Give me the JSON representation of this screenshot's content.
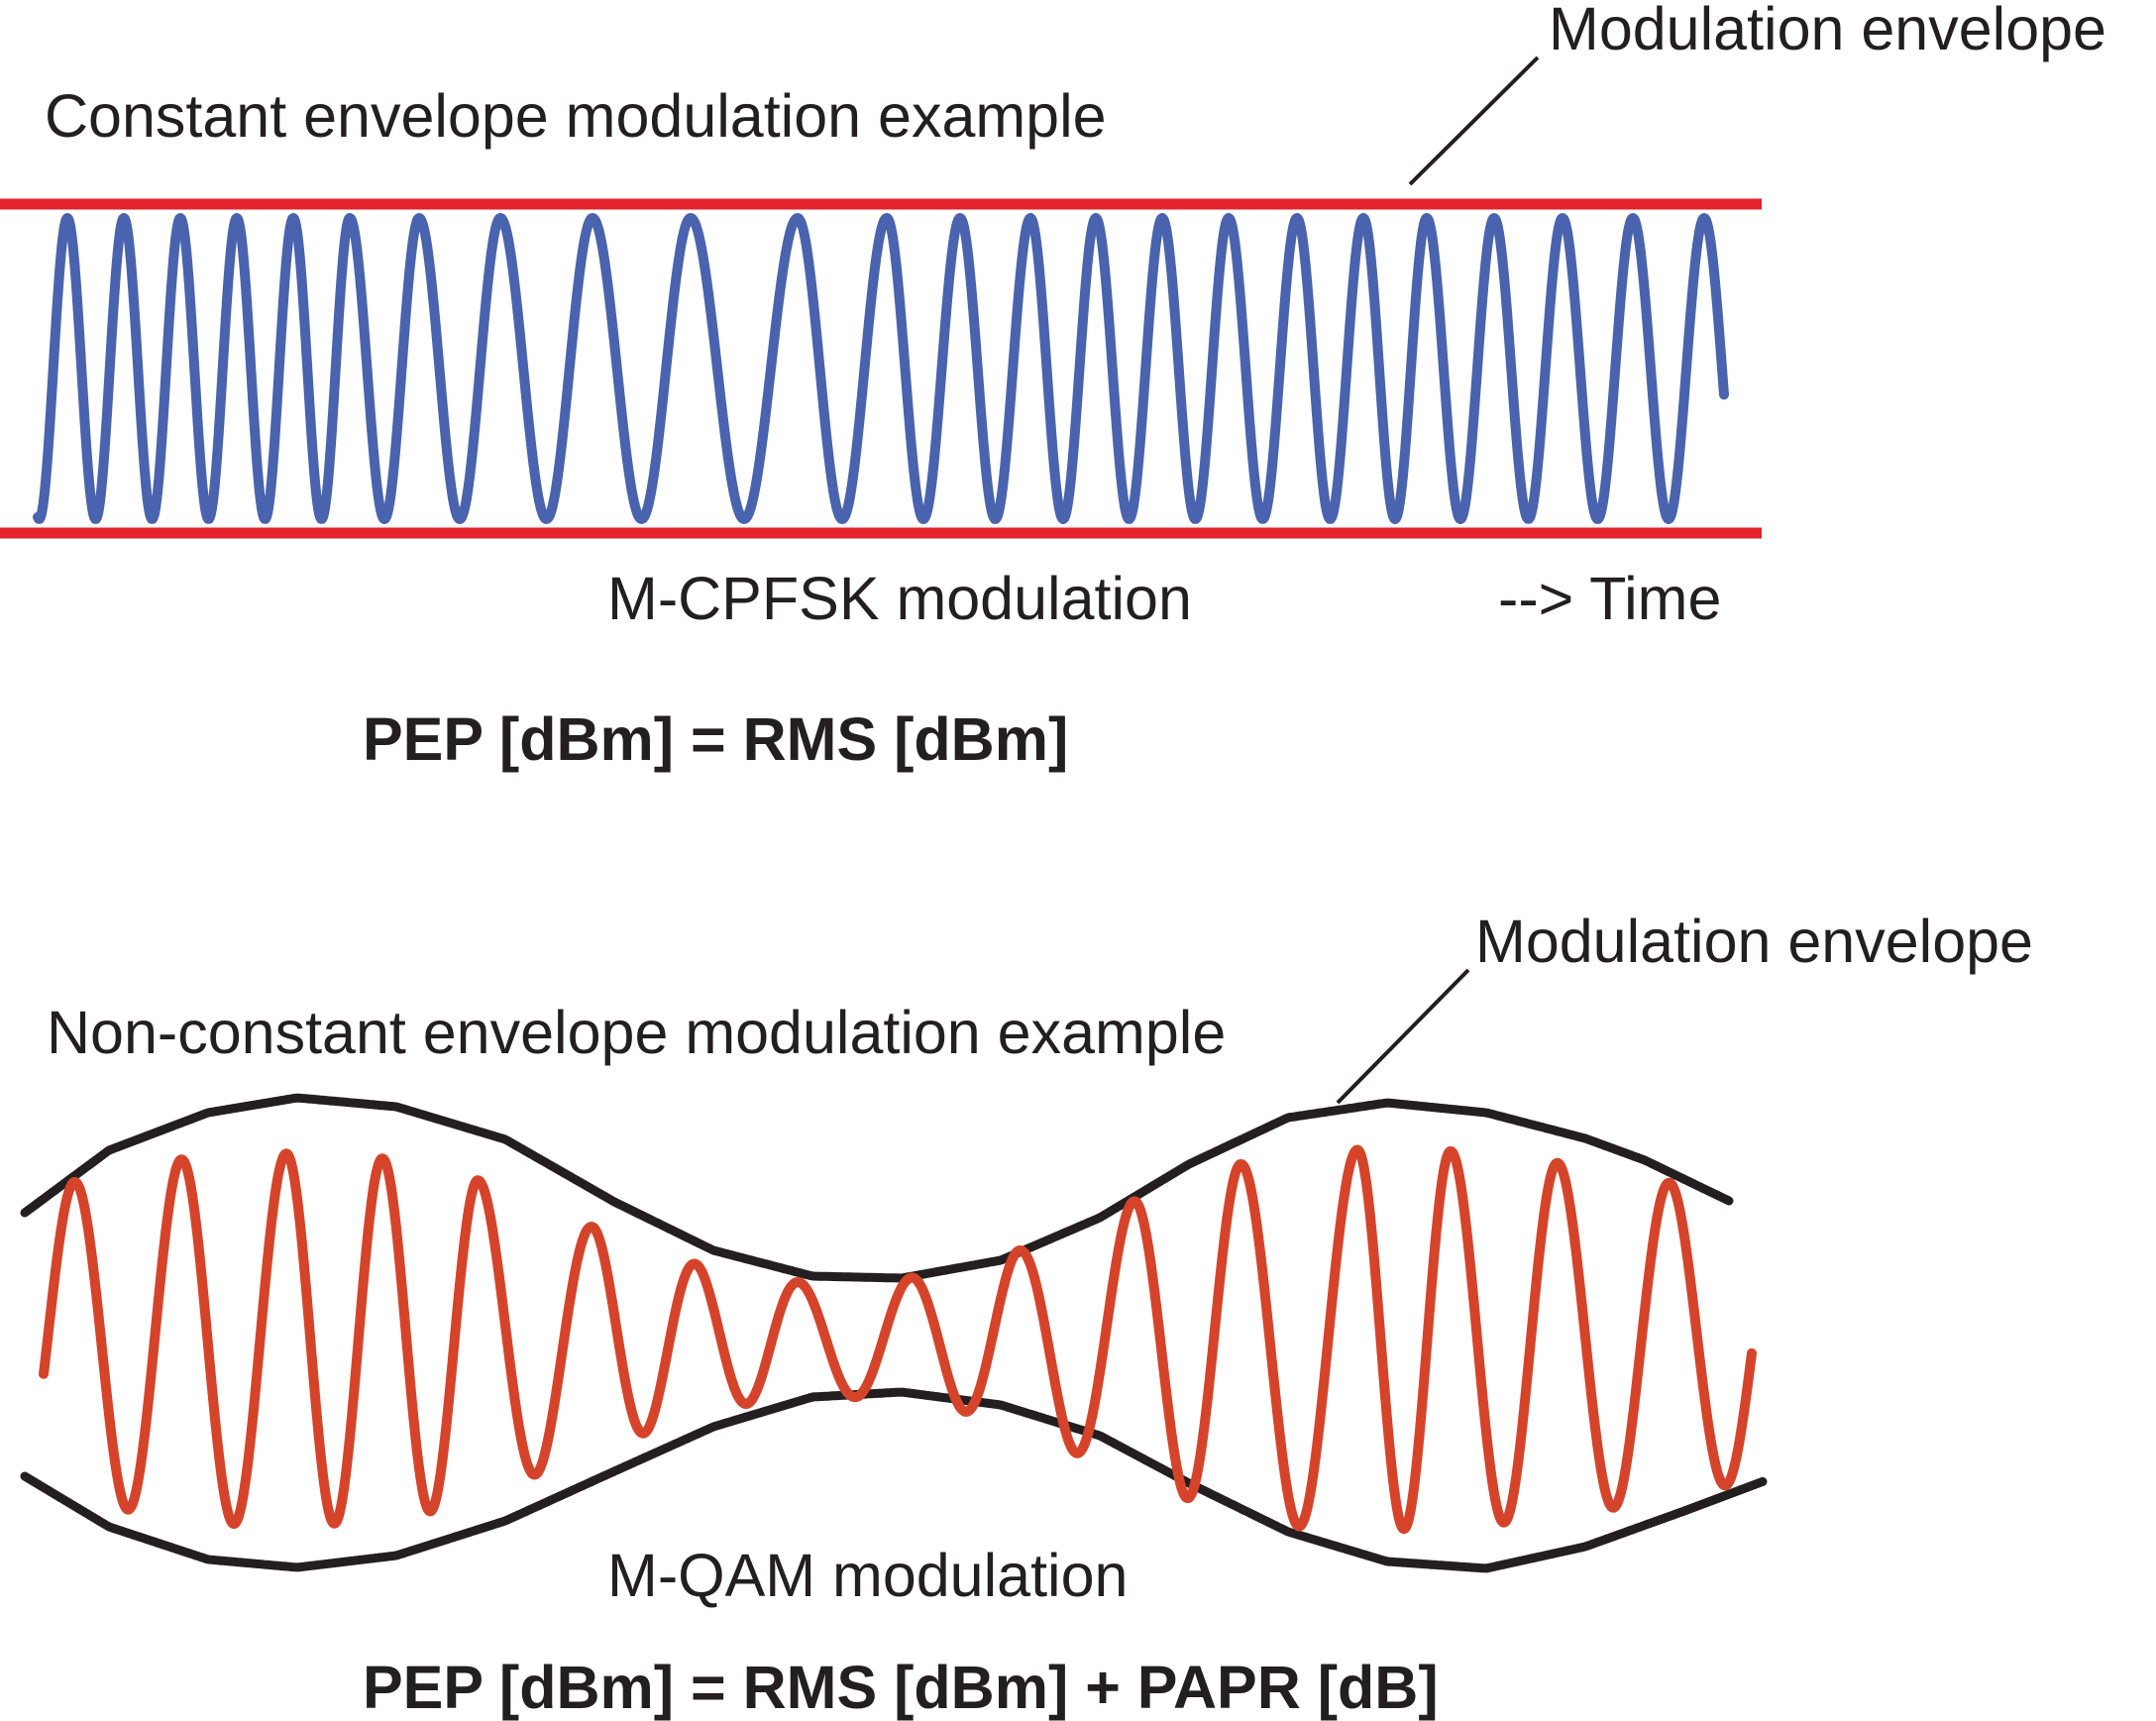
{
  "top_panel": {
    "title": "Constant envelope modulation example",
    "envelope_label": "Modulation envelope",
    "modulation_label": "M-CPFSK modulation",
    "time_label": "--> Time",
    "formula": "PEP [dBm] = RMS [dBm]"
  },
  "bottom_panel": {
    "title": "Non-constant envelope modulation example",
    "envelope_label": "Modulation envelope",
    "modulation_label": "M-QAM modulation",
    "formula": "PEP [dBm] = RMS [dBm] + PAPR [dB]"
  },
  "colors": {
    "constant_envelope": "#e3222d",
    "fsk_wave": "#4a63ae",
    "qam_wave": "#d5442a",
    "variable_envelope": "#231f20",
    "text": "#231f20"
  }
}
